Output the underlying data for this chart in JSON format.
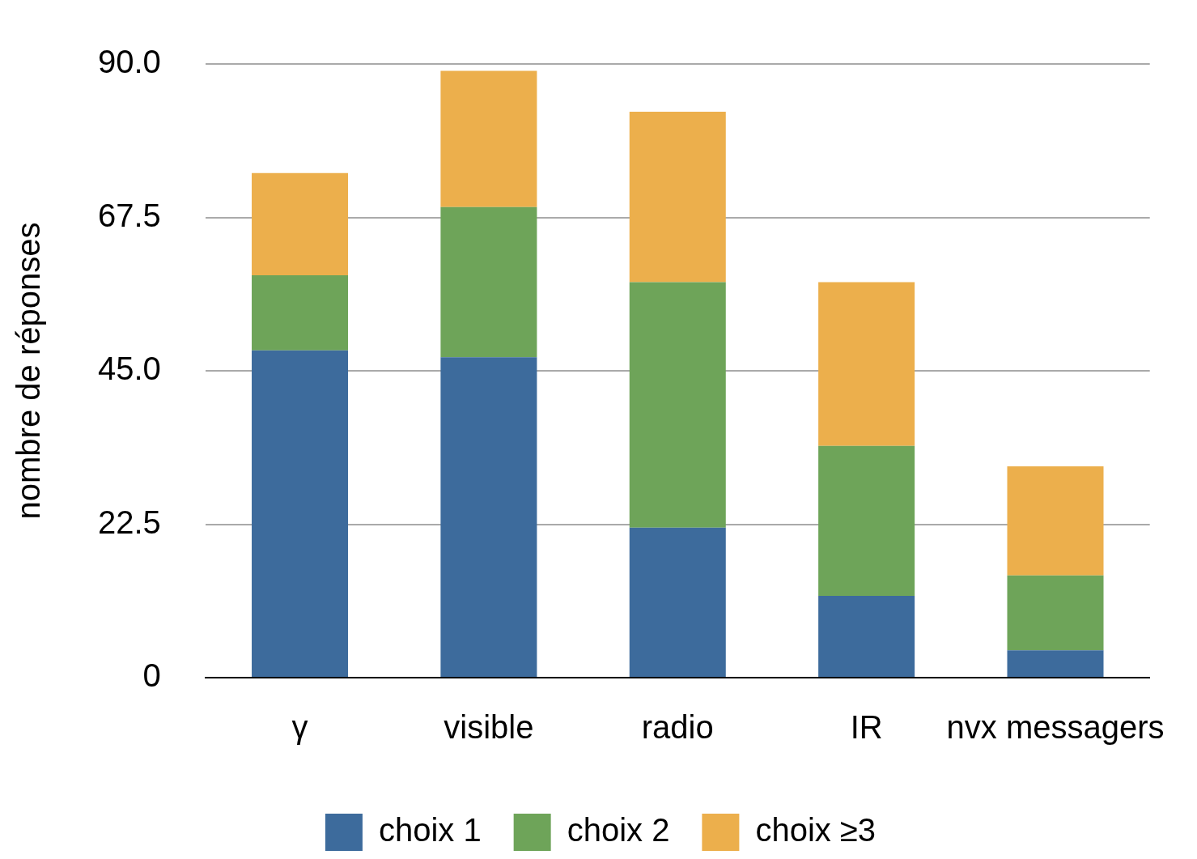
{
  "chart_data": {
    "type": "bar",
    "stacked": true,
    "ylabel": "nombre de réponses",
    "categories": [
      "γ",
      "visible",
      "radio",
      "IR",
      "nvx messagers"
    ],
    "series": [
      {
        "name": "choix 1",
        "color": "#3d6b9c",
        "values": [
          48,
          47,
          22,
          12,
          4
        ]
      },
      {
        "name": "choix 2",
        "color": "#6ea459",
        "values": [
          11,
          22,
          36,
          22,
          11
        ]
      },
      {
        "name": "choix ≥3",
        "color": "#ecaf4c",
        "values": [
          15,
          20,
          25,
          24,
          16
        ]
      }
    ],
    "ylim": [
      0,
      90
    ],
    "yticks": [
      0,
      {
        "value": 22.5,
        "label": "22.5"
      },
      {
        "value": 45,
        "label": "45.0"
      },
      {
        "value": 67.5,
        "label": "67.5"
      },
      {
        "value": 90,
        "label": "90.0"
      }
    ],
    "grid": "y",
    "legend": "bottom"
  }
}
